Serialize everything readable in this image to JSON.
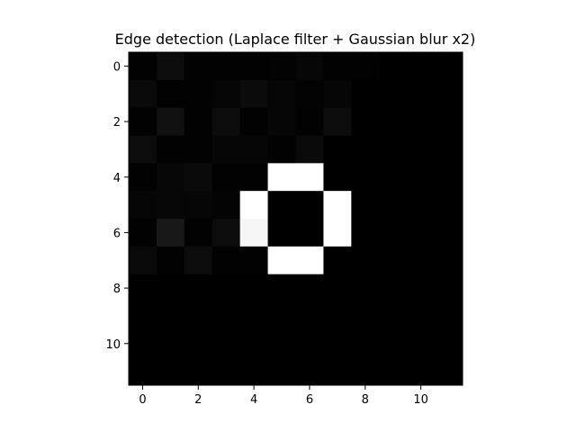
{
  "chart_data": {
    "type": "heatmap",
    "title": "Edge detection (Laplace filter + Gaussian blur x2)",
    "xlabel": "",
    "ylabel": "",
    "colormap": "gray",
    "vmin": 0,
    "vmax": 255,
    "grid": false,
    "x_ticks": [
      0,
      2,
      4,
      6,
      8,
      10
    ],
    "y_ticks": [
      0,
      2,
      4,
      6,
      8,
      10
    ],
    "x_tick_labels": [
      "0",
      "2",
      "4",
      "6",
      "8",
      "10"
    ],
    "y_tick_labels": [
      "0",
      "2",
      "4",
      "6",
      "8",
      "10"
    ],
    "xlim": [
      -0.5,
      11.5
    ],
    "ylim": [
      11.5,
      -0.5
    ],
    "values": [
      [
        2,
        12,
        2,
        2,
        2,
        3,
        7,
        2,
        2,
        0,
        0,
        0
      ],
      [
        9,
        2,
        2,
        5,
        11,
        5,
        3,
        6,
        0,
        0,
        0,
        0
      ],
      [
        2,
        16,
        2,
        12,
        2,
        6,
        2,
        12,
        0,
        0,
        0,
        0
      ],
      [
        12,
        2,
        2,
        6,
        6,
        2,
        10,
        0,
        0,
        0,
        0,
        0
      ],
      [
        2,
        7,
        10,
        2,
        2,
        255,
        255,
        0,
        0,
        0,
        0,
        0
      ],
      [
        6,
        7,
        6,
        4,
        255,
        0,
        0,
        255,
        0,
        0,
        0,
        0
      ],
      [
        2,
        24,
        2,
        12,
        246,
        0,
        0,
        255,
        0,
        0,
        0,
        0
      ],
      [
        9,
        2,
        12,
        2,
        2,
        255,
        255,
        0,
        0,
        0,
        0,
        0
      ],
      [
        0,
        0,
        0,
        0,
        0,
        0,
        0,
        0,
        0,
        0,
        0,
        0
      ],
      [
        0,
        0,
        0,
        0,
        0,
        0,
        0,
        0,
        0,
        0,
        0,
        0
      ],
      [
        0,
        0,
        0,
        0,
        0,
        0,
        0,
        0,
        0,
        0,
        0,
        0
      ],
      [
        0,
        0,
        0,
        0,
        0,
        0,
        0,
        0,
        0,
        0,
        0,
        0
      ]
    ]
  }
}
